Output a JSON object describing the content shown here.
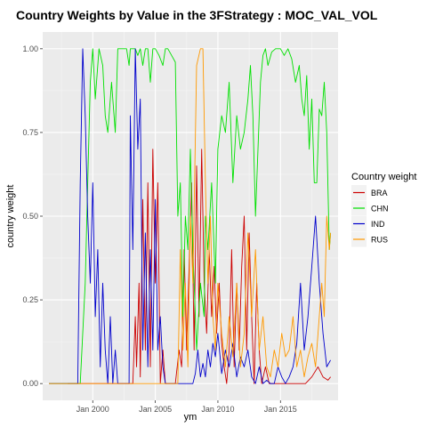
{
  "chart_data": {
    "type": "line",
    "title": "Country Weights by Value in the 3FStrategy : MOC_VAL_VOL",
    "xlabel": "ym",
    "ylabel": "country weight",
    "xlim": [
      1996.0,
      2019.6
    ],
    "ylim": [
      -0.05,
      1.05
    ],
    "x_ticks": [
      2000,
      2005,
      2010,
      2015
    ],
    "x_tick_labels": [
      "Jan 2000",
      "Jan 2005",
      "Jan 2010",
      "Jan 2015"
    ],
    "y_ticks": [
      0,
      0.25,
      0.5,
      0.75,
      1
    ],
    "y_tick_labels": [
      "0.00",
      "0.25",
      "0.50",
      "0.75",
      "1.00"
    ],
    "grid": true,
    "legend": {
      "title": "Country weight",
      "position": "right"
    },
    "series": [
      {
        "name": "BRA",
        "color": "#cc0000",
        "x": [
          1998.0,
          2003.2,
          2003.4,
          2003.5,
          2003.7,
          2003.8,
          2004.0,
          2004.2,
          2004.4,
          2004.6,
          2004.8,
          2005.0,
          2005.2,
          2005.4,
          2005.6,
          2005.8,
          2006.0,
          2006.3,
          2006.6,
          2006.9,
          2007.1,
          2007.3,
          2007.5,
          2007.7,
          2007.9,
          2008.1,
          2008.3,
          2008.5,
          2008.7,
          2008.9,
          2009.1,
          2009.3,
          2009.5,
          2009.7,
          2009.9,
          2010.1,
          2010.3,
          2010.5,
          2010.7,
          2010.9,
          2011.1,
          2011.3,
          2011.5,
          2011.7,
          2011.9,
          2012.1,
          2012.3,
          2012.5,
          2012.7,
          2012.9,
          2013.1,
          2013.3,
          2013.5,
          2013.8,
          2014.1,
          2014.5,
          2015.0,
          2015.5,
          2016.0,
          2016.5,
          2017.0,
          2017.5,
          2018.0,
          2018.4,
          2018.8,
          2019.0
        ],
        "y": [
          0,
          0,
          0.2,
          0.05,
          0.3,
          0.02,
          0.55,
          0.1,
          0.6,
          0.05,
          0.7,
          0.3,
          0.6,
          0,
          0.1,
          0,
          0,
          0,
          0,
          0.1,
          0.05,
          0.4,
          0.1,
          0.35,
          0.6,
          0.1,
          0.65,
          0.2,
          0.7,
          0.3,
          0.15,
          0.4,
          0.2,
          0.35,
          0.15,
          0.3,
          0.12,
          0.05,
          0,
          0.1,
          0.4,
          0.05,
          0.3,
          0.1,
          0.35,
          0.5,
          0.1,
          0.45,
          0.2,
          0,
          0.3,
          0.1,
          0,
          0.05,
          0,
          0,
          0,
          0,
          0,
          0,
          0,
          0.02,
          0.05,
          0.02,
          0.01,
          0.02
        ]
      },
      {
        "name": "CHN",
        "color": "#00e000",
        "x": [
          1996.5,
          1998.0,
          1999.0,
          1999.4,
          1999.6,
          1999.8,
          2000.0,
          2000.2,
          2000.5,
          2000.8,
          2001.0,
          2001.2,
          2001.5,
          2001.8,
          2002.0,
          2002.3,
          2002.5,
          2002.7,
          2002.9,
          2003.0,
          2003.2,
          2003.4,
          2003.6,
          2003.8,
          2004.0,
          2004.2,
          2004.4,
          2004.6,
          2004.8,
          2005.0,
          2005.3,
          2005.6,
          2005.8,
          2006.0,
          2006.3,
          2006.6,
          2006.8,
          2007.0,
          2007.2,
          2007.4,
          2007.6,
          2007.8,
          2008.0,
          2008.3,
          2008.6,
          2008.9,
          2009.0,
          2009.2,
          2009.5,
          2009.8,
          2010.0,
          2010.3,
          2010.6,
          2010.9,
          2011.2,
          2011.5,
          2011.8,
          2012.1,
          2012.4,
          2012.6,
          2012.8,
          2013.0,
          2013.2,
          2013.4,
          2013.6,
          2013.8,
          2014.0,
          2014.3,
          2014.6,
          2015.0,
          2015.3,
          2015.6,
          2015.9,
          2016.2,
          2016.5,
          2016.7,
          2016.9,
          2017.1,
          2017.3,
          2017.5,
          2017.7,
          2017.9,
          2018.1,
          2018.3,
          2018.5,
          2018.7,
          2018.9,
          2019.0
        ],
        "y": [
          0,
          0,
          0,
          0.3,
          0.6,
          0.9,
          1,
          0.85,
          1,
          0.95,
          0.8,
          0.75,
          0.9,
          0.75,
          1,
          1,
          1,
          1,
          0.95,
          1,
          1,
          1,
          0.98,
          1,
          0.95,
          1,
          1,
          0.9,
          1,
          1,
          0.98,
          0.95,
          1,
          1,
          0.98,
          0.96,
          0.5,
          0.6,
          0.2,
          0.5,
          0.4,
          0.7,
          0.4,
          0.1,
          0.3,
          0.2,
          0.5,
          0.4,
          0.6,
          0.3,
          0.7,
          0.8,
          0.75,
          0.9,
          0.6,
          0.8,
          0.7,
          0.75,
          0.85,
          0.95,
          0.8,
          0.5,
          0.7,
          0.9,
          0.98,
          1,
          0.95,
          0.99,
          1,
          1,
          0.98,
          1,
          0.97,
          0.9,
          0.95,
          0.85,
          0.8,
          0.92,
          0.7,
          0.85,
          0.6,
          0.6,
          0.82,
          0.8,
          0.9,
          0.75,
          0.4,
          0.45
        ]
      },
      {
        "name": "IND",
        "color": "#0000cc",
        "x": [
          1996.5,
          1998.8,
          1999.0,
          1999.2,
          1999.4,
          1999.6,
          1999.8,
          2000.0,
          2000.2,
          2000.4,
          2000.6,
          2000.8,
          2001.0,
          2001.2,
          2001.4,
          2001.6,
          2001.8,
          2002.0,
          2002.3,
          2002.6,
          2002.9,
          2003.0,
          2003.2,
          2003.4,
          2003.6,
          2003.8,
          2004.0,
          2004.2,
          2004.4,
          2004.6,
          2004.8,
          2005.0,
          2005.2,
          2005.4,
          2005.6,
          2005.8,
          2006.0,
          2006.5,
          2007.0,
          2007.5,
          2008.0,
          2008.2,
          2008.4,
          2008.6,
          2008.8,
          2009.0,
          2009.2,
          2009.4,
          2009.6,
          2009.8,
          2010.0,
          2010.3,
          2010.6,
          2010.9,
          2011.2,
          2011.5,
          2011.8,
          2012.1,
          2012.4,
          2012.7,
          2013.0,
          2013.3,
          2013.6,
          2013.9,
          2014.2,
          2014.5,
          2014.8,
          2015.1,
          2015.4,
          2015.7,
          2016.0,
          2016.3,
          2016.6,
          2016.9,
          2017.2,
          2017.5,
          2017.8,
          2018.1,
          2018.4,
          2018.7,
          2019.0
        ],
        "y": [
          0,
          0,
          0.6,
          1,
          0.8,
          0.5,
          0.3,
          0.6,
          0.2,
          0.4,
          0.05,
          0.3,
          0.1,
          0,
          0.2,
          0,
          0.1,
          0,
          0,
          0,
          0,
          0.8,
          0.4,
          1,
          0.7,
          0.85,
          0.1,
          0.45,
          0.05,
          0.4,
          0.1,
          0.55,
          0.1,
          0.2,
          0.05,
          0,
          0,
          0,
          0,
          0,
          0,
          0.03,
          0.1,
          0.02,
          0.06,
          0.02,
          0.1,
          0.05,
          0.12,
          0.08,
          0.15,
          0.03,
          0.1,
          0.05,
          0.12,
          0.02,
          0.08,
          0.05,
          0.1,
          0.02,
          0,
          0.05,
          0,
          0.01,
          0,
          0,
          0.05,
          0.02,
          0,
          0.02,
          0.05,
          0.12,
          0.3,
          0.1,
          0.2,
          0.35,
          0.5,
          0.3,
          0.15,
          0.05,
          0.07
        ]
      },
      {
        "name": "RUS",
        "color": "#ff9900",
        "x": [
          1996.5,
          2006.8,
          2007.0,
          2007.2,
          2007.4,
          2007.6,
          2007.8,
          2008.0,
          2008.3,
          2008.6,
          2008.8,
          2009.0,
          2009.2,
          2009.4,
          2009.6,
          2009.8,
          2010.0,
          2010.3,
          2010.6,
          2010.9,
          2011.2,
          2011.5,
          2011.8,
          2012.1,
          2012.4,
          2012.7,
          2013.0,
          2013.3,
          2013.6,
          2013.9,
          2014.2,
          2014.5,
          2014.8,
          2015.1,
          2015.4,
          2015.7,
          2016.0,
          2016.3,
          2016.6,
          2016.9,
          2017.2,
          2017.5,
          2017.8,
          2018.1,
          2018.3,
          2018.5,
          2018.7,
          2018.9,
          2019.0
        ],
        "y": [
          0,
          0,
          0.4,
          0.1,
          0.3,
          0.05,
          0.5,
          0.3,
          0.95,
          1,
          1,
          0.6,
          0.3,
          0.5,
          0.2,
          0.1,
          0.3,
          0.15,
          0.05,
          0.2,
          0.08,
          0.3,
          0.05,
          0.15,
          0.45,
          0.2,
          0.4,
          0.1,
          0.2,
          0.05,
          0.02,
          0.1,
          0.05,
          0.15,
          0.08,
          0.1,
          0.2,
          0.05,
          0.1,
          0.02,
          0.08,
          0.12,
          0.05,
          0.2,
          0.3,
          0.2,
          0.5,
          0.4,
          0.45
        ]
      }
    ]
  }
}
